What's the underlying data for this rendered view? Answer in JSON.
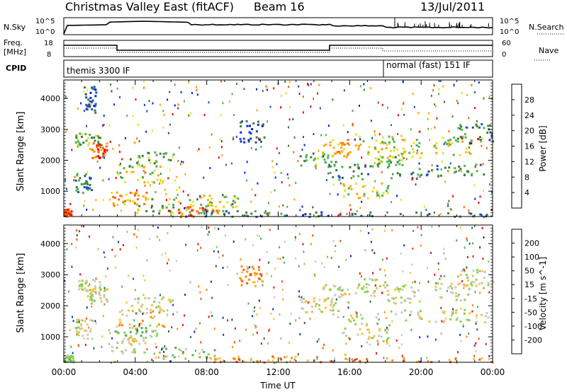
{
  "header": {
    "title": "Christmas Valley East (fitACF)",
    "beam": "Beam 16",
    "date": "13/Jul/2011"
  },
  "parameters": {
    "nsky_label": "N.Sky",
    "nsky_ticks": [
      "10^5",
      "10^0"
    ],
    "nsearch_label": "N.Search",
    "nsearch_ticks": [
      "10^5",
      "10^0"
    ],
    "freq_label": [
      "Freq.",
      "[MHz]"
    ],
    "freq_ticks": [
      "18",
      "8"
    ],
    "nave_label": "Nave",
    "nave_ticks": [
      "60",
      "0"
    ],
    "cpid_label": "CPID",
    "cpid_segments": [
      {
        "label": "themis 3300 IF",
        "start_hour": 0.0,
        "end_hour": 18.0
      },
      {
        "label": "normal (fast) 151 IF",
        "start_hour": 18.0,
        "end_hour": 24.0
      }
    ]
  },
  "chart_data": [
    {
      "type": "heatmap",
      "name": "power",
      "ylabel": "Slant Range [km]",
      "x_ticks": [
        "00:00",
        "04:00",
        "08:00",
        "12:00",
        "16:00",
        "20:00",
        "00:00"
      ],
      "y_ticks": [
        "1000",
        "2000",
        "3000",
        "4000"
      ],
      "xlim_hours": [
        0,
        24
      ],
      "ylim_km": [
        180,
        4600
      ],
      "colorbar_label": "Power [dB]",
      "colorbar_ticks": [
        "28",
        "24",
        "20",
        "16",
        "12",
        "8",
        "4"
      ],
      "colors": [
        "#0022ee",
        "#204cb8",
        "#3c7c3c",
        "#4fb04f",
        "#e8e020",
        "#ffa500",
        "#ff6600",
        "#ee0000"
      ],
      "regions": [
        {
          "t": [
            0.0,
            0.4
          ],
          "r": [
            200,
            450
          ],
          "level": 6
        },
        {
          "t": [
            0.6,
            1.6
          ],
          "r": [
            950,
            1600
          ],
          "level": 2
        },
        {
          "t": [
            0.6,
            2.2
          ],
          "r": [
            2500,
            2900
          ],
          "level": 3
        },
        {
          "t": [
            1.4,
            2.4
          ],
          "r": [
            2100,
            2600
          ],
          "level": 6
        },
        {
          "t": [
            1.1,
            1.8
          ],
          "r": [
            3500,
            4500
          ],
          "level": 1
        },
        {
          "t": [
            2.6,
            4.6
          ],
          "r": [
            500,
            1000
          ],
          "level": 5
        },
        {
          "t": [
            3.0,
            5.8
          ],
          "r": [
            1300,
            1900
          ],
          "level": 4
        },
        {
          "t": [
            3.6,
            6.2
          ],
          "r": [
            1800,
            2300
          ],
          "level": 3
        },
        {
          "t": [
            4.0,
            7.2
          ],
          "r": [
            300,
            800
          ],
          "level": 3
        },
        {
          "t": [
            5.8,
            8.8
          ],
          "r": [
            200,
            550
          ],
          "level": 6
        },
        {
          "t": [
            7.0,
            9.8
          ],
          "r": [
            500,
            900
          ],
          "level": 4
        },
        {
          "t": [
            7.6,
            12.6
          ],
          "r": [
            200,
            400
          ],
          "level": 2
        },
        {
          "t": [
            9.8,
            11.2
          ],
          "r": [
            2600,
            3300
          ],
          "level": 1
        },
        {
          "t": [
            13.2,
            15.2
          ],
          "r": [
            1800,
            2300
          ],
          "level": 3
        },
        {
          "t": [
            14.4,
            16.0
          ],
          "r": [
            2100,
            2700
          ],
          "level": 5
        },
        {
          "t": [
            14.8,
            20.0
          ],
          "r": [
            1400,
            1900
          ],
          "level": 2
        },
        {
          "t": [
            15.6,
            18.2
          ],
          "r": [
            800,
            1300
          ],
          "level": 4
        },
        {
          "t": [
            16.2,
            18.4
          ],
          "r": [
            2200,
            2900
          ],
          "level": 4
        },
        {
          "t": [
            17.2,
            19.0
          ],
          "r": [
            1800,
            2200
          ],
          "level": 3
        },
        {
          "t": [
            18.0,
            20.0
          ],
          "r": [
            2100,
            2700
          ],
          "level": 4
        },
        {
          "t": [
            19.8,
            24.0
          ],
          "r": [
            1500,
            1900
          ],
          "level": 2
        },
        {
          "t": [
            20.6,
            22.8
          ],
          "r": [
            2200,
            2800
          ],
          "level": 4
        },
        {
          "t": [
            22.0,
            24.0
          ],
          "r": [
            2600,
            3200
          ],
          "level": 2
        },
        {
          "t": [
            13.0,
            24.0
          ],
          "r": [
            200,
            350
          ],
          "level": 1
        }
      ]
    },
    {
      "type": "heatmap",
      "name": "velocity",
      "ylabel": "Slant Range [km]",
      "xlabel": "Time UT",
      "x_ticks": [
        "00:00",
        "04:00",
        "08:00",
        "12:00",
        "16:00",
        "20:00",
        "00:00"
      ],
      "y_ticks": [
        "1000",
        "2000",
        "3000",
        "4000"
      ],
      "xlim_hours": [
        0,
        24
      ],
      "ylim_km": [
        180,
        4600
      ],
      "colorbar_label": "Velocity [m s^-1]",
      "colorbar_ticks": [
        "200",
        "100",
        "50",
        "15",
        "-15",
        "-50",
        "-100",
        "-200"
      ],
      "colors": [
        "#1a2fd0",
        "#2a6a38",
        "#4caf50",
        "#8ed04e",
        "#c8c8c8",
        "#ffbe40",
        "#ff8a00",
        "#ff5000",
        "#e81010"
      ],
      "regions": [
        {
          "t": [
            0.0,
            0.5
          ],
          "r": [
            200,
            450
          ],
          "level": 3
        },
        {
          "t": [
            0.6,
            1.6
          ],
          "r": [
            950,
            1600
          ],
          "level": 4
        },
        {
          "t": [
            0.6,
            2.2
          ],
          "r": [
            2500,
            2900
          ],
          "level": 4
        },
        {
          "t": [
            1.4,
            2.4
          ],
          "r": [
            2100,
            2600
          ],
          "level": 4
        },
        {
          "t": [
            2.6,
            4.6
          ],
          "r": [
            500,
            1000
          ],
          "level": 4
        },
        {
          "t": [
            3.0,
            5.8
          ],
          "r": [
            1300,
            1900
          ],
          "level": 5
        },
        {
          "t": [
            3.6,
            6.2
          ],
          "r": [
            1800,
            2300
          ],
          "level": 4
        },
        {
          "t": [
            2.8,
            5.2
          ],
          "r": [
            1000,
            1400
          ],
          "level": 3
        },
        {
          "t": [
            5.0,
            8.6
          ],
          "r": [
            300,
            700
          ],
          "level": 3
        },
        {
          "t": [
            8.0,
            13.0
          ],
          "r": [
            200,
            420
          ],
          "level": 6
        },
        {
          "t": [
            9.8,
            11.2
          ],
          "r": [
            2600,
            3300
          ],
          "level": 6
        },
        {
          "t": [
            13.2,
            15.2
          ],
          "r": [
            1800,
            2300
          ],
          "level": 4
        },
        {
          "t": [
            14.4,
            16.0
          ],
          "r": [
            2100,
            2700
          ],
          "level": 4
        },
        {
          "t": [
            14.8,
            20.0
          ],
          "r": [
            1400,
            1900
          ],
          "level": 4
        },
        {
          "t": [
            15.6,
            18.2
          ],
          "r": [
            800,
            1300
          ],
          "level": 4
        },
        {
          "t": [
            16.2,
            18.4
          ],
          "r": [
            2200,
            2900
          ],
          "level": 4
        },
        {
          "t": [
            18.0,
            20.0
          ],
          "r": [
            2100,
            2700
          ],
          "level": 4
        },
        {
          "t": [
            19.8,
            24.0
          ],
          "r": [
            1500,
            1900
          ],
          "level": 4
        },
        {
          "t": [
            20.6,
            22.8
          ],
          "r": [
            2200,
            2800
          ],
          "level": 4
        },
        {
          "t": [
            22.0,
            24.0
          ],
          "r": [
            2600,
            3200
          ],
          "level": 4
        },
        {
          "t": [
            13.0,
            24.0
          ],
          "r": [
            200,
            350
          ],
          "level": 6
        }
      ]
    }
  ]
}
